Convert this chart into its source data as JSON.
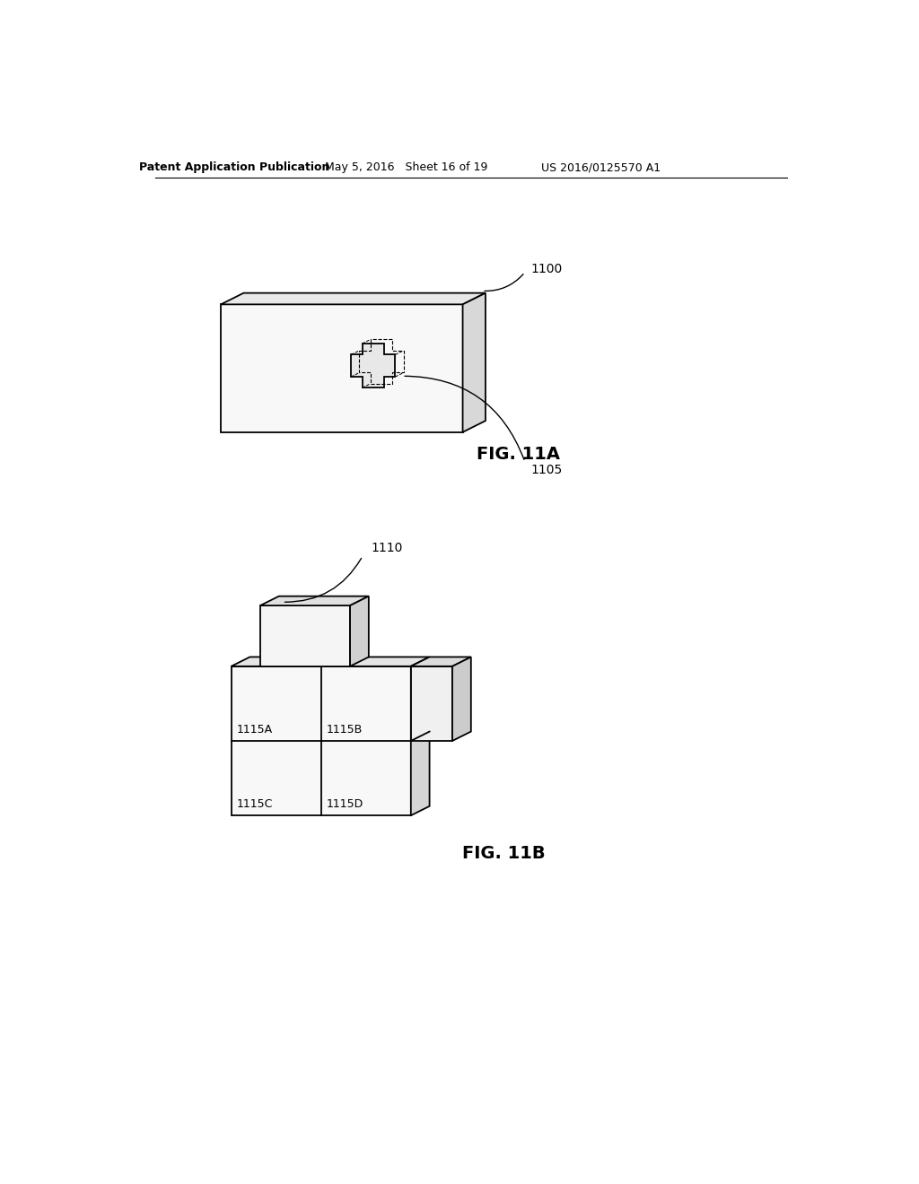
{
  "title_left": "Patent Application Publication",
  "title_mid": "May 5, 2016   Sheet 16 of 19",
  "title_right": "US 2016/0125570 A1",
  "fig11a_label": "FIG. 11A",
  "fig11b_label": "FIG. 11B",
  "label_1100": "1100",
  "label_1105": "1105",
  "label_1110": "1110",
  "label_1115A": "1115A",
  "label_1115B": "1115B",
  "label_1115C": "1115C",
  "label_1115D": "1115D",
  "bg_color": "#ffffff",
  "line_color": "#000000",
  "front_color": "#f8f8f8",
  "top_color": "#e8e8e8",
  "right_color": "#d8d8d8"
}
